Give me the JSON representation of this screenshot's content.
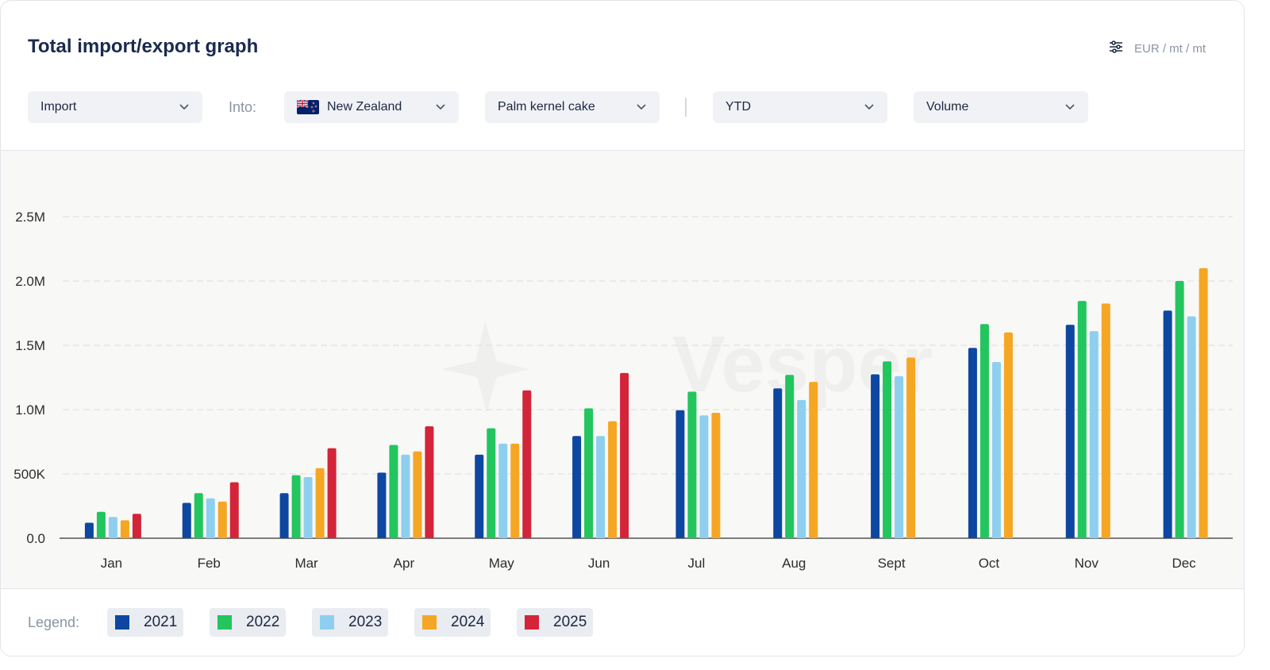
{
  "header": {
    "title": "Total import/export graph",
    "unit_label": "EUR / mt / mt",
    "settings_icon": "sliders-icon"
  },
  "filters": {
    "direction": "Import",
    "into_label": "Into:",
    "country": "New Zealand",
    "country_flag_icon": "new-zealand-flag-icon",
    "product": "Palm kernel cake",
    "period": "YTD",
    "measure": "Volume"
  },
  "watermark": "Vesper",
  "legend": {
    "label": "Legend:"
  },
  "colors": {
    "2021": "#0d47a1",
    "2022": "#22c55e",
    "2023": "#8ecfef",
    "2024": "#f5a623",
    "2025": "#d3243a"
  },
  "chart_data": {
    "type": "bar",
    "categories": [
      "Jan",
      "Feb",
      "Mar",
      "Apr",
      "May",
      "Jun",
      "Jul",
      "Aug",
      "Sept",
      "Oct",
      "Nov",
      "Dec"
    ],
    "ylim": [
      0,
      2500000
    ],
    "yticks": [
      "0.0",
      "500K",
      "1.0M",
      "1.5M",
      "2.0M",
      "2.5M"
    ],
    "grid": true,
    "series": [
      {
        "name": "2021",
        "values": [
          120000,
          275000,
          350000,
          510000,
          650000,
          795000,
          995000,
          1165000,
          1275000,
          1480000,
          1660000,
          1770000
        ]
      },
      {
        "name": "2022",
        "values": [
          205000,
          350000,
          490000,
          725000,
          855000,
          1010000,
          1140000,
          1270000,
          1375000,
          1665000,
          1845000,
          2000000
        ]
      },
      {
        "name": "2023",
        "values": [
          165000,
          310000,
          475000,
          650000,
          735000,
          795000,
          955000,
          1075000,
          1260000,
          1370000,
          1610000,
          1725000
        ]
      },
      {
        "name": "2024",
        "values": [
          140000,
          285000,
          545000,
          675000,
          735000,
          910000,
          975000,
          1215000,
          1405000,
          1600000,
          1825000,
          2100000
        ]
      },
      {
        "name": "2025",
        "values": [
          190000,
          435000,
          700000,
          870000,
          1150000,
          1285000,
          null,
          null,
          null,
          null,
          null,
          null
        ]
      }
    ]
  }
}
